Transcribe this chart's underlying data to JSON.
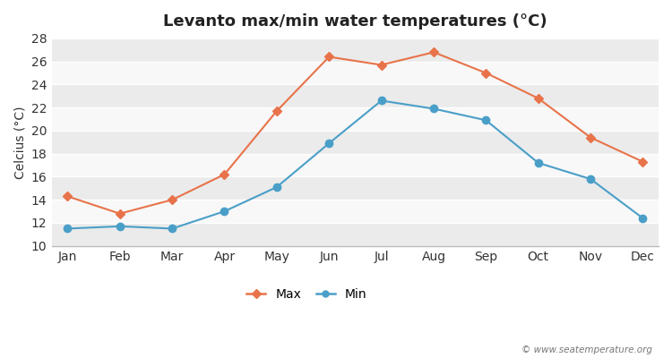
{
  "title": "Levanto max/min water temperatures (°C)",
  "ylabel": "Celcius (°C)",
  "months": [
    "Jan",
    "Feb",
    "Mar",
    "Apr",
    "May",
    "Jun",
    "Jul",
    "Aug",
    "Sep",
    "Oct",
    "Nov",
    "Dec"
  ],
  "max_temps": [
    14.3,
    12.8,
    14.0,
    16.2,
    21.7,
    26.4,
    25.7,
    26.8,
    25.0,
    22.8,
    19.4,
    17.3
  ],
  "min_temps": [
    11.5,
    11.7,
    11.5,
    13.0,
    15.1,
    18.9,
    22.6,
    21.9,
    20.9,
    17.2,
    15.8,
    12.4
  ],
  "max_color": "#e8734a",
  "min_color": "#4a9fc8",
  "figure_bg": "#ffffff",
  "plot_bg_light": "#f0f0f0",
  "plot_bg_dark": "#e0e0e0",
  "grid_color": "#ffffff",
  "ylim": [
    10,
    28
  ],
  "yticks": [
    10,
    12,
    14,
    16,
    18,
    20,
    22,
    24,
    26,
    28
  ],
  "legend_labels": [
    "Max",
    "Min"
  ],
  "watermark": "© www.seatemperature.org",
  "title_fontsize": 13,
  "label_fontsize": 10,
  "tick_fontsize": 10,
  "legend_fontsize": 10
}
